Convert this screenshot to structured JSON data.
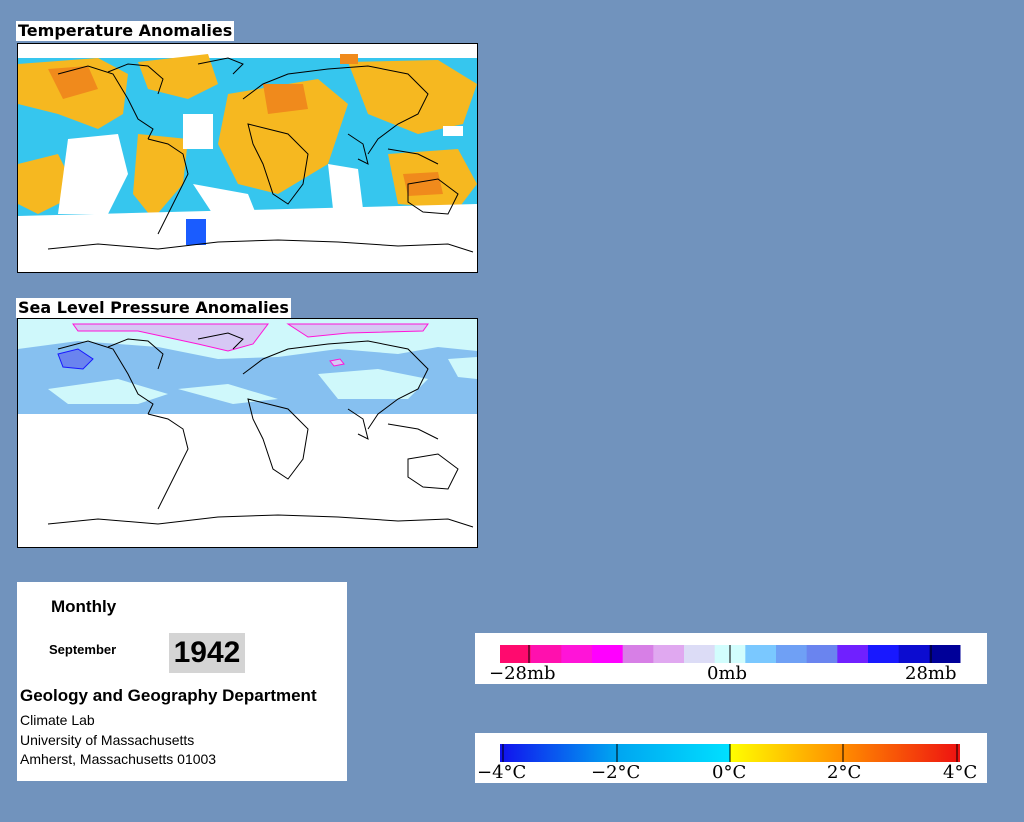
{
  "temperature_panel": {
    "title": "Temperature Anomalies"
  },
  "pressure_panel": {
    "title": "Sea Level Pressure Anomalies"
  },
  "info": {
    "period": "Monthly",
    "month": "September",
    "year": "1942",
    "department": "Geology and Geography Department",
    "lines": [
      "Climate Lab",
      "University of Massachusetts",
      "Amherst, Massachusetts 01003"
    ]
  },
  "pressure_legend": {
    "labels": [
      "−28mb",
      "0mb",
      "28mb"
    ],
    "colors": [
      "#ff0a6e",
      "#ff10ae",
      "#ff14d8",
      "#ff00ff",
      "#d77fe6",
      "#e0a8f0",
      "#dcdcf6",
      "#d2fdfd",
      "#7ac8ff",
      "#6fa0f5",
      "#6a84ef",
      "#7020ff",
      "#1818ff",
      "#0c0cd0",
      "#000099"
    ]
  },
  "temperature_legend": {
    "labels": [
      "−4°C",
      "−2°C",
      "0°C",
      "2°C",
      "4°C"
    ],
    "colors": {
      "cold_extreme": "#1111ee",
      "cold": "#00a4f0",
      "cool": "#00e0ff",
      "warm": "#ffff00",
      "hot": "#ff8a00",
      "hot_extreme": "#ee1111"
    }
  },
  "palette": {
    "page_background": "#7193bd",
    "cold_anomaly": "#36c6ee",
    "warm_anomaly": "#f6b820",
    "strong_warm": "#f08a1c",
    "strong_cold": "#1a5cff",
    "high_pressure": "#d6c8f4",
    "low_pressure": "#86c0f0",
    "neutral_pressure": "#cff8fb"
  }
}
